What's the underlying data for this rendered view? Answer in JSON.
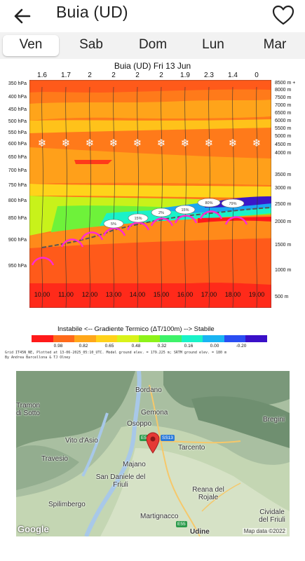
{
  "header": {
    "title": "Buia (UD)"
  },
  "tabs": [
    "Ven",
    "Sab",
    "Dom",
    "Lun",
    "Mar"
  ],
  "chart": {
    "title": "Buia (UD) Fri 13 Jun",
    "top_values": [
      "1.6",
      "1.7",
      "2",
      "2",
      "2",
      "2",
      "1.9",
      "2.3",
      "1.4",
      "0"
    ],
    "pressure_levels": [
      "350 hPa",
      "400 hPa",
      "450 hPa",
      "500 hPa",
      "550 hPa",
      "600 hPa",
      "650 hPa",
      "700 hPa",
      "750 hPa",
      "800 hPa",
      "850 hPa",
      "900 hPa",
      "950 hPa"
    ],
    "altitudes": [
      "8500 m +",
      "8000 m",
      "7500 m",
      "7000 m",
      "6500 m",
      "6000 m",
      "5500 m",
      "5000 m",
      "4500 m",
      "4000 m",
      "3500 m",
      "3000 m",
      "2500 m",
      "2000 m",
      "1500 m",
      "1000 m",
      "500 m"
    ],
    "hours": [
      "10.00",
      "11.00",
      "12.00",
      "13.00",
      "14.00",
      "15.00",
      "16.00",
      "17.00",
      "18.00",
      "19.00"
    ],
    "cloud_labels": [
      "5%",
      "15%",
      "2%",
      "15%",
      "80%",
      "79%"
    ],
    "legend_text": "Instabile <--   Gradiente Termico (ΔT/100m)   --> Stabile",
    "colorbar_labels": [
      "0.98",
      "0.82",
      "0.65",
      "0.48",
      "0.32",
      "0.16",
      "0.00",
      "-0.20"
    ],
    "colorbar_colors": [
      "#ff1a1a",
      "#ff6a1a",
      "#ffa71a",
      "#ffd21a",
      "#d9f21a",
      "#8ef21a",
      "#3ef26a",
      "#1af2c8",
      "#1ab4f2",
      "#2a4ef2",
      "#3a10c8"
    ],
    "footer_line1": "Grid IT45N_NE, Plotted at 13-06-2025_05:10_UTC. Model ground elev. = 179.225 m; SRTM ground elev. = 180 m",
    "footer_line2": "By Andrea Barcellona & TJ Olney"
  },
  "map": {
    "places": [
      "Bordano",
      "Gemona",
      "Osoppo",
      "Vito d'Asio",
      "Travesio",
      "Majano",
      "Tarcento",
      "San Daniele del Friuli",
      "Spilimbergo",
      "Reana del Rojale",
      "Martignacco",
      "Udine",
      "Cividale del Friuli",
      "Bregini",
      "Tramonti di Sotto"
    ],
    "roads": [
      "E55",
      "SS13",
      "E55"
    ],
    "logo": "Google",
    "attribution": "Map data ©2022"
  }
}
